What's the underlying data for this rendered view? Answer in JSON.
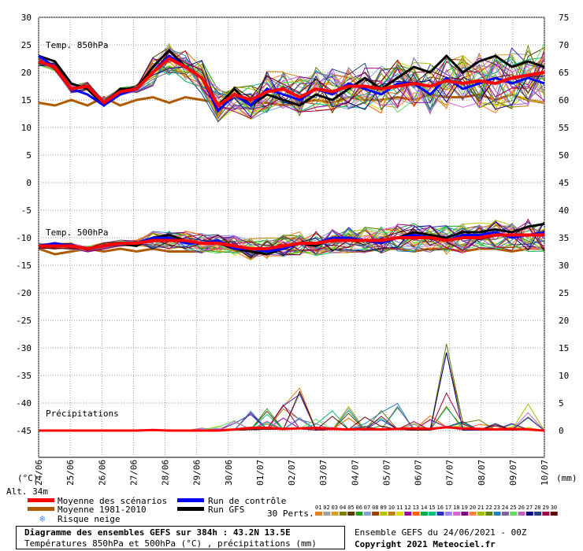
{
  "chart_data": {
    "type": "line",
    "title": "Diagramme des ensembles GEFS sur 384h : 43.2N 13.5E",
    "subtitle": "Températures 850hPa et 500hPa (°C) , précipitations (mm)",
    "run_info": "Ensemble GEFS du 24/06/2021 - 00Z",
    "copyright": "Copyright 2021 Meteociel.fr",
    "altitude": "Alt. 34m",
    "unit_left": "(°C)",
    "unit_right": "(mm)",
    "x_labels": [
      "24/06",
      "25/06",
      "26/06",
      "27/06",
      "28/06",
      "29/06",
      "30/06",
      "01/07",
      "02/07",
      "03/07",
      "04/07",
      "05/07",
      "06/07",
      "07/07",
      "08/07",
      "09/07",
      "10/07"
    ],
    "y_left_ticks": [
      30,
      25,
      20,
      15,
      10,
      5,
      0,
      -5,
      -10,
      -15,
      -20,
      -25,
      -30,
      -35,
      -40,
      -45
    ],
    "y_right_ticks": [
      75,
      70,
      65,
      60,
      55,
      50,
      45,
      40,
      35,
      30,
      25,
      20,
      15,
      10,
      5,
      0
    ],
    "ylim_left": [
      -50,
      30
    ],
    "grid": true,
    "panels": {
      "t850": "Temp. 850hPa",
      "t500": "Temp. 500hPa",
      "precip": "Précipitations"
    },
    "legend": {
      "mean": "Moyenne des scénarios",
      "clim": "Moyenne 1981-2010",
      "snow": "Risque neige",
      "control": "Run de contrôle",
      "gfs": "Run GFS",
      "perts": "30 Perts."
    },
    "perturbation_labels": [
      "01",
      "02",
      "03",
      "04",
      "05",
      "06",
      "07",
      "08",
      "09",
      "10",
      "11",
      "12",
      "13",
      "14",
      "15",
      "16",
      "17",
      "18",
      "19",
      "20",
      "21",
      "22",
      "23",
      "24",
      "25",
      "26",
      "27",
      "28",
      "29",
      "30"
    ],
    "perturbation_colors": [
      "#e08020",
      "#a0a0a0",
      "#d0a020",
      "#808000",
      "#5a3a00",
      "#20a020",
      "#80a0d0",
      "#a04000",
      "#c0c000",
      "#c08000",
      "#e0e000",
      "#a000a0",
      "#ff6000",
      "#00b050",
      "#00c080",
      "#3030c0",
      "#a080ff",
      "#e060e0",
      "#800080",
      "#ff8040",
      "#a0c000",
      "#608000",
      "#2080c0",
      "#8060a0",
      "#60e060",
      "#c060c0",
      "#000080",
      "#204080",
      "#a00040",
      "#600000"
    ],
    "colors": {
      "mean": "#ff0000",
      "clim": "#b05a00",
      "control": "#0000ff",
      "gfs": "#000000"
    },
    "series": {
      "t850_mean": [
        22,
        21,
        17,
        17.5,
        14.5,
        16.5,
        17,
        20,
        22.5,
        21,
        19,
        14,
        16,
        15,
        16.5,
        17,
        15.5,
        17,
        16.5,
        17.5,
        17.5,
        17,
        17.5,
        18,
        17.5,
        18.5,
        18,
        18.5,
        18,
        19,
        19.5,
        20
      ],
      "t850_clim": [
        14.5,
        14,
        15,
        14,
        15.5,
        14,
        15,
        15.5,
        14.5,
        15.5,
        15,
        14.5,
        15.5,
        14.5,
        14.5,
        14,
        14.5,
        15,
        14.5,
        15.5,
        15,
        15,
        15.5,
        15,
        16,
        15.5,
        15.5,
        16,
        15,
        16,
        15,
        14.5
      ],
      "t850_control": [
        23,
        21,
        17,
        16,
        14,
        16,
        17,
        20,
        23,
        21,
        19,
        13,
        16,
        14,
        17,
        16,
        15,
        17,
        16,
        18,
        17,
        16,
        18,
        18,
        16,
        19,
        17,
        18,
        19,
        18,
        19,
        18
      ],
      "t850_gfs": [
        23,
        22,
        18,
        17,
        14,
        17,
        17,
        21,
        24,
        21,
        19,
        14,
        17,
        14,
        16,
        15,
        14,
        16,
        15,
        17,
        19,
        17,
        19,
        21,
        20,
        23,
        20,
        22,
        23,
        21,
        22,
        21
      ],
      "t500_mean": [
        -11.5,
        -11.5,
        -11.5,
        -12,
        -11.5,
        -11,
        -11,
        -10.5,
        -10.5,
        -10.5,
        -11,
        -11,
        -11.5,
        -12,
        -12,
        -11.5,
        -11,
        -11,
        -10.5,
        -10.5,
        -10.5,
        -10.5,
        -10,
        -10,
        -10,
        -10.5,
        -10,
        -10,
        -9.5,
        -9.5,
        -9.5,
        -9.5
      ],
      "t500_clim": [
        -12,
        -13,
        -12.5,
        -12,
        -12.5,
        -12,
        -12.5,
        -12,
        -12.5,
        -12.5,
        -12.5,
        -12,
        -12,
        -12.5,
        -12.5,
        -12,
        -12.5,
        -12,
        -12,
        -12.5,
        -12.5,
        -12,
        -12,
        -12.5,
        -12,
        -12,
        -12.5,
        -12,
        -12,
        -12.5,
        -12,
        -12
      ],
      "t500_control": [
        -11.5,
        -11,
        -11.5,
        -12,
        -11.5,
        -11,
        -11,
        -10,
        -10,
        -11,
        -11,
        -10.5,
        -12,
        -12,
        -12.5,
        -12,
        -11,
        -11,
        -10,
        -10,
        -10.5,
        -11,
        -10,
        -9.5,
        -10,
        -10.5,
        -9.5,
        -9.5,
        -9,
        -10,
        -9.5,
        -9
      ],
      "t500_gfs": [
        -11.5,
        -11,
        -11.5,
        -12,
        -11.5,
        -11,
        -11.5,
        -10,
        -9.5,
        -10.5,
        -11,
        -11,
        -12,
        -12.5,
        -13,
        -12,
        -11,
        -11.5,
        -10,
        -10,
        -10.5,
        -10.5,
        -10,
        -9,
        -9.5,
        -10,
        -9,
        -9,
        -8.5,
        -9,
        -8,
        -7.5
      ],
      "precip_mean": [
        0,
        0,
        0,
        0,
        0,
        0,
        0,
        0.1,
        0,
        0,
        0,
        0,
        0.2,
        0.5,
        0.5,
        0.3,
        0.4,
        0.5,
        0.3,
        0.2,
        0.3,
        0.2,
        0.3,
        0.4,
        0.3,
        0.6,
        0.4,
        0.3,
        0.2,
        0.3,
        0.2,
        0
      ],
      "precip_peak": [
        0,
        0,
        0,
        0,
        0,
        0,
        0,
        0,
        0,
        0,
        0.5,
        1,
        2,
        4,
        6,
        5,
        8,
        3,
        4,
        5,
        3,
        4,
        5,
        2,
        3,
        16,
        2,
        2,
        3,
        2,
        5,
        0
      ]
    }
  }
}
